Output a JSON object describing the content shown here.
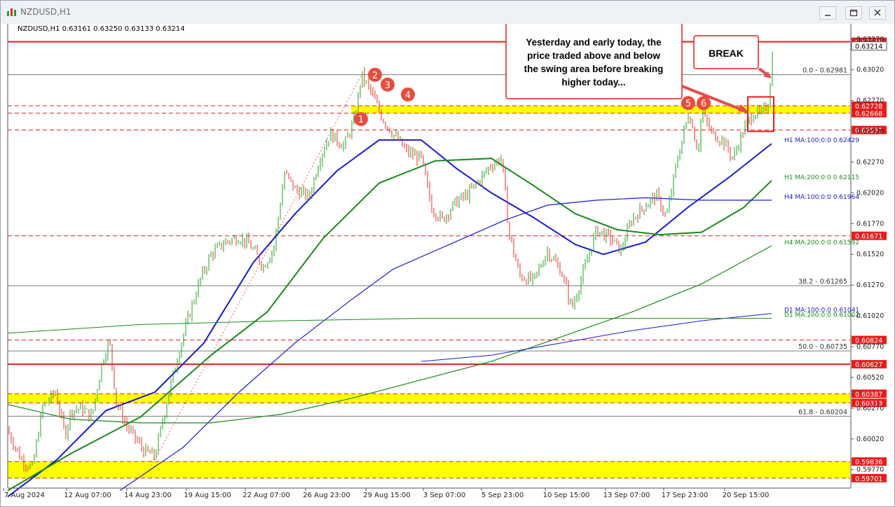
{
  "window": {
    "title": "NZDUSD,H1",
    "buttons": [
      "minimize-button",
      "maximize-button",
      "close-button"
    ]
  },
  "chart_data": {
    "type": "candlestick",
    "symbol_header": "NZDUSD,H1  0.63161 0.63250 0.63133 0.63214",
    "ylim": [
      0.5966,
      0.6336
    ],
    "y_ticks": [
      "0.63270",
      "0.63020",
      "0.62770",
      "0.62520",
      "0.62270",
      "0.62020",
      "0.61770",
      "0.61520",
      "0.61270",
      "0.61020",
      "0.60770",
      "0.60520",
      "0.60270",
      "0.60020",
      "0.59770"
    ],
    "x_labels": [
      "7 Aug 2024",
      "12 Aug 07:00",
      "14 Aug 23:00",
      "19 Aug 15:00",
      "22 Aug 07:00",
      "26 Aug 23:00",
      "29 Aug 15:00",
      "3 Sep 07:00",
      "5 Sep 23:00",
      "10 Sep 15:00",
      "13 Sep 07:00",
      "17 Sep 23:00",
      "20 Sep 15:00"
    ],
    "price_path": [
      [
        0,
        0.603
      ],
      [
        12,
        0.6006
      ],
      [
        30,
        0.5985
      ],
      [
        45,
        0.5978
      ],
      [
        60,
        0.6028
      ],
      [
        78,
        0.604
      ],
      [
        92,
        0.6005
      ],
      [
        100,
        0.6025
      ],
      [
        115,
        0.6027
      ],
      [
        130,
        0.602
      ],
      [
        145,
        0.6065
      ],
      [
        155,
        0.6082
      ],
      [
        165,
        0.6032
      ],
      [
        180,
        0.6012
      ],
      [
        205,
        0.5992
      ],
      [
        220,
        0.5988
      ],
      [
        240,
        0.604
      ],
      [
        255,
        0.6075
      ],
      [
        270,
        0.6105
      ],
      [
        285,
        0.6132
      ],
      [
        300,
        0.6152
      ],
      [
        320,
        0.6162
      ],
      [
        340,
        0.6166
      ],
      [
        355,
        0.616
      ],
      [
        375,
        0.6142
      ],
      [
        390,
        0.6158
      ],
      [
        405,
        0.6218
      ],
      [
        420,
        0.6205
      ],
      [
        440,
        0.6198
      ],
      [
        455,
        0.623
      ],
      [
        470,
        0.625
      ],
      [
        490,
        0.624
      ],
      [
        505,
        0.6262
      ],
      [
        515,
        0.6298
      ],
      [
        530,
        0.6282
      ],
      [
        545,
        0.6262
      ],
      [
        560,
        0.625
      ],
      [
        580,
        0.6235
      ],
      [
        600,
        0.623
      ],
      [
        615,
        0.619
      ],
      [
        630,
        0.618
      ],
      [
        650,
        0.6195
      ],
      [
        665,
        0.62
      ],
      [
        680,
        0.621
      ],
      [
        700,
        0.6225
      ],
      [
        715,
        0.623
      ],
      [
        725,
        0.617
      ],
      [
        740,
        0.6135
      ],
      [
        760,
        0.613
      ],
      [
        780,
        0.6155
      ],
      [
        800,
        0.6138
      ],
      [
        815,
        0.6108
      ],
      [
        830,
        0.6135
      ],
      [
        850,
        0.6172
      ],
      [
        870,
        0.6165
      ],
      [
        885,
        0.6155
      ],
      [
        900,
        0.618
      ],
      [
        920,
        0.6192
      ],
      [
        935,
        0.62
      ],
      [
        950,
        0.6182
      ],
      [
        965,
        0.6228
      ],
      [
        982,
        0.6268
      ],
      [
        995,
        0.6235
      ],
      [
        1000,
        0.6268
      ],
      [
        1015,
        0.625
      ],
      [
        1030,
        0.6245
      ],
      [
        1045,
        0.623
      ],
      [
        1060,
        0.6253
      ],
      [
        1075,
        0.6268
      ],
      [
        1085,
        0.6265
      ],
      [
        1095,
        0.6275
      ],
      [
        1103,
        0.6325
      ]
    ],
    "moving_averages": [
      {
        "name": "H1 MA:100:0:0",
        "value": "0.62429",
        "color": "#1a1ad2"
      },
      {
        "name": "H1 MA:200:0:0",
        "value": "0.62115",
        "color": "#1a8a1a"
      },
      {
        "name": "H4 MA:100:0:0",
        "value": "0.61964",
        "color": "#1a1ad2"
      },
      {
        "name": "H4 MA:200:0:0",
        "value": "0.61592",
        "color": "#1a8a1a"
      },
      {
        "name": "D1 MA:100:0:0",
        "value": "0.61041",
        "color": "#1a1ad2"
      },
      {
        "name": "D1 MA:200:0:0",
        "value": "0.61002",
        "color": "#1a8a1a"
      }
    ],
    "fib_levels": [
      {
        "label": "0.0 - 0.62981",
        "value": 0.62981
      },
      {
        "label": "38.2 - 0.61265",
        "value": 0.61265
      },
      {
        "label": "50.0 - 0.60735",
        "value": 0.60735
      },
      {
        "label": "61.8 - 0.60204",
        "value": 0.60204
      }
    ],
    "horizontal_levels": [
      {
        "price": "0.63248",
        "value": 0.63248,
        "style": "solid-red",
        "tag": "red"
      },
      {
        "price": "0.62728",
        "value": 0.62728,
        "style": "dashed-red",
        "tag": "red"
      },
      {
        "price": "0.62668",
        "value": 0.62668,
        "style": "dashed-red",
        "tag": "red"
      },
      {
        "price": "0.62531",
        "value": 0.62531,
        "style": "dashed-red",
        "tag": "red"
      },
      {
        "price": "0.61671",
        "value": 0.61671,
        "style": "dashed-red",
        "tag": "red"
      },
      {
        "price": "0.60824",
        "value": 0.60824,
        "style": "dashed-red",
        "tag": "red"
      },
      {
        "price": "0.60627",
        "value": 0.60627,
        "style": "solid-red",
        "tag": "red"
      },
      {
        "price": "0.60387",
        "value": 0.60387,
        "style": "dashed-red",
        "tag": "red"
      },
      {
        "price": "0.60313",
        "value": 0.60313,
        "style": "dashed-red",
        "tag": "red"
      },
      {
        "price": "0.59836",
        "value": 0.59836,
        "style": "dashed-red",
        "tag": "red"
      },
      {
        "price": "0.59701",
        "value": 0.59701,
        "style": "dashed-red",
        "tag": "red"
      }
    ],
    "current_price_tag": "0.63214",
    "zones": [
      {
        "from": 0.62668,
        "to": 0.62728,
        "color": "#ffff00"
      },
      {
        "from": 0.60313,
        "to": 0.60387,
        "color": "#ffff00"
      },
      {
        "from": 0.59701,
        "to": 0.59836,
        "color": "#ffff00"
      }
    ],
    "markers": [
      "1",
      "2",
      "3",
      "4",
      "5",
      "6"
    ],
    "annotations": {
      "callout": "Yesterday and early today, the price traded above and below the swing area before breaking higher today...",
      "break": "BREAK"
    },
    "colors": {
      "bull": "#1fa01f",
      "bear": "#e0302a",
      "level": "#e81c1c",
      "zone": "#ffff00",
      "marker": "#e84c3d"
    }
  }
}
